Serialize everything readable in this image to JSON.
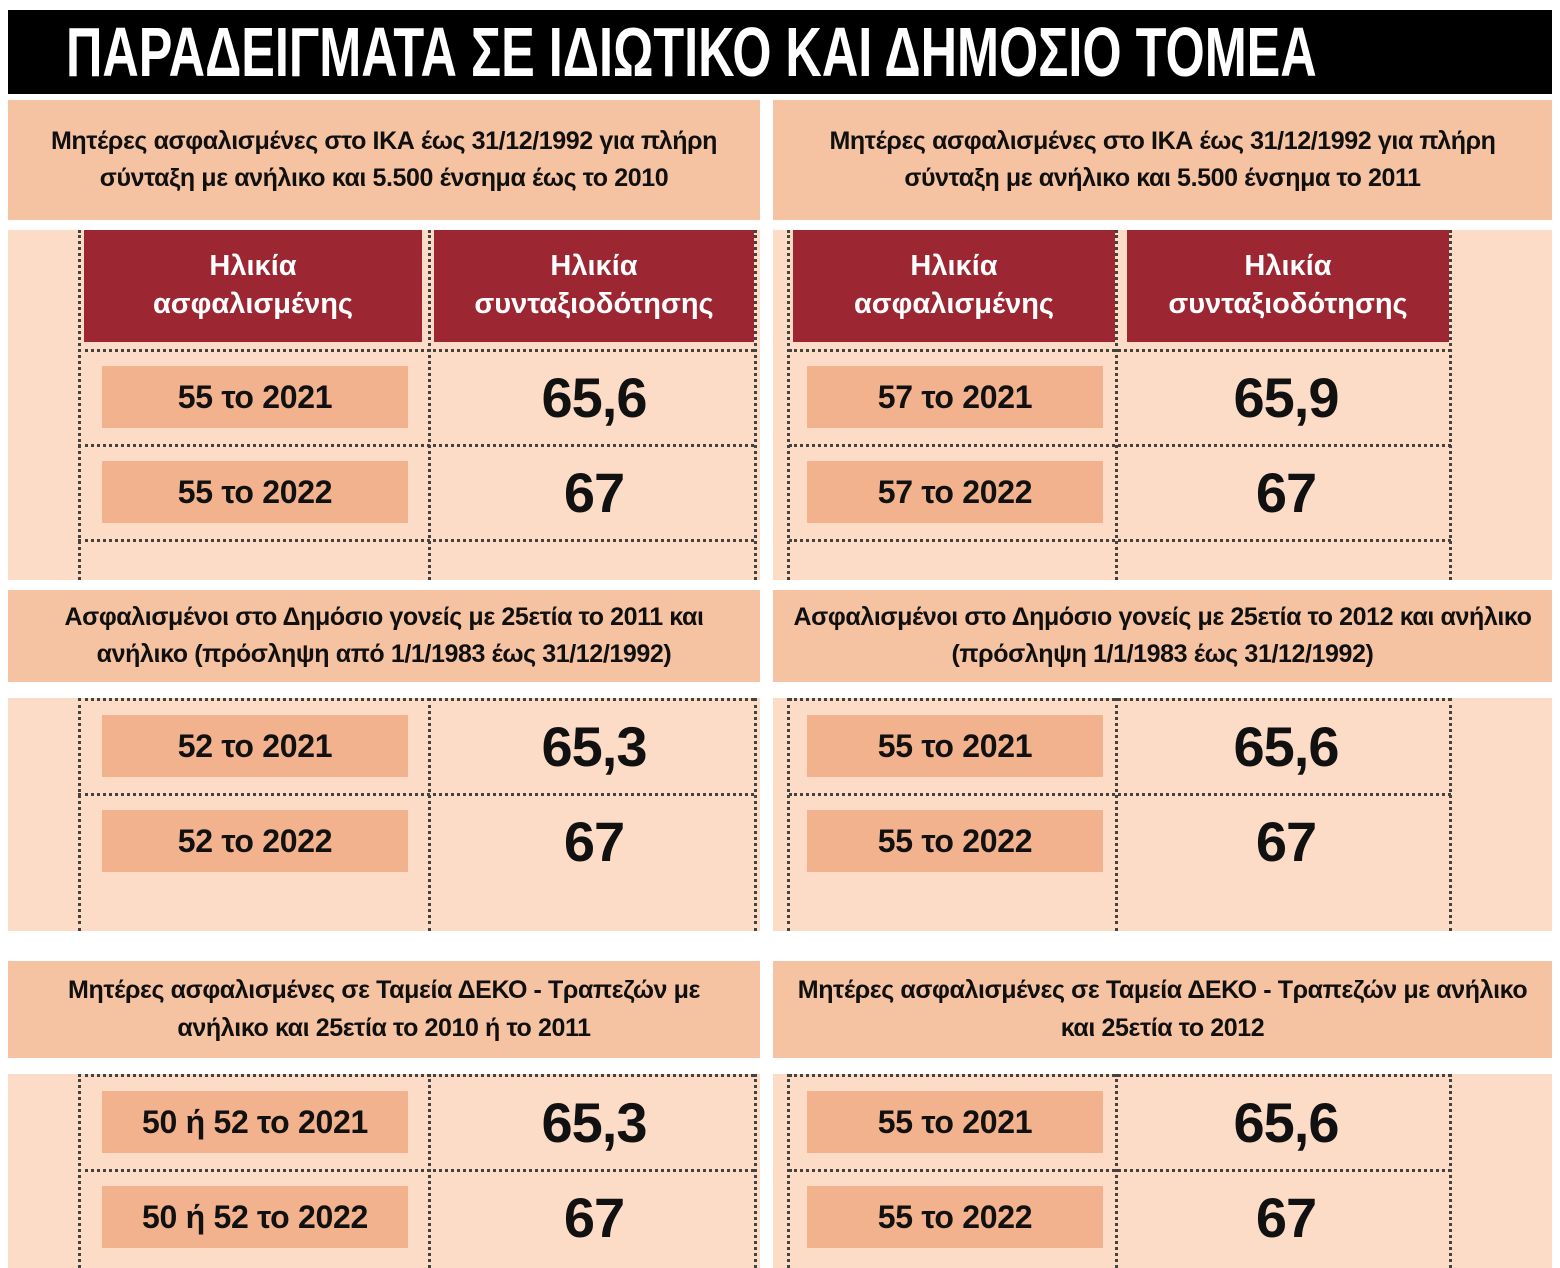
{
  "title": "ΠΑΡΑΔΕΙΓΜΑΤΑ ΣΕ ΙΔΙΩΤΙΚΟ ΚΑΙ ΔΗΜΟΣΙΟ ΤΟΜΕΑ",
  "colors": {
    "title_bar_bg": "#000000",
    "title_text": "#ffffff",
    "section_header_bg": "#f5c2a2",
    "table_bg": "#fcdcc6",
    "value_box_bg": "#f2b28d",
    "column_header_bg": "#9c2732",
    "column_header_text": "#ffffff",
    "body_text": "#111111",
    "dotted_line": "#45413c"
  },
  "chart_data": [
    {
      "type": "table",
      "title": "Μητέρες ασφαλισμένες στο ΙΚΑ έως 31/12/1992 για πλήρη σύνταξη με ανήλικο και 5.500 ένσημα έως το 2010",
      "columns": [
        "Ηλικία ασφαλισμένης",
        "Ηλικία συνταξιοδότησης"
      ],
      "column_headers_visible": true,
      "rows": [
        [
          "55 το 2021",
          "65,6"
        ],
        [
          "55 το 2022",
          "67"
        ]
      ]
    },
    {
      "type": "table",
      "title": "Μητέρες ασφαλισμένες στο ΙΚΑ έως 31/12/1992 για πλήρη σύνταξη με ανήλικο και 5.500 ένσημα το 2011",
      "columns": [
        "Ηλικία ασφαλισμένης",
        "Ηλικία συνταξιοδότησης"
      ],
      "column_headers_visible": true,
      "rows": [
        [
          "57 το 2021",
          "65,9"
        ],
        [
          "57 το 2022",
          "67"
        ]
      ]
    },
    {
      "type": "table",
      "title": "Ασφαλισμένοι στο Δημόσιο γονείς με 25ετία το 2011 και ανήλικο (πρόσληψη από 1/1/1983 έως 31/12/1992)",
      "columns": [
        "Ηλικία ασφαλισμένης",
        "Ηλικία συνταξιοδότησης"
      ],
      "column_headers_visible": false,
      "rows": [
        [
          "52 το 2021",
          "65,3"
        ],
        [
          "52 το 2022",
          "67"
        ]
      ]
    },
    {
      "type": "table",
      "title": "Ασφαλισμένοι στο Δημόσιο γονείς με 25ετία το 2012 και ανήλικο (πρόσληψη 1/1/1983 έως 31/12/1992)",
      "columns": [
        "Ηλικία ασφαλισμένης",
        "Ηλικία συνταξιοδότησης"
      ],
      "column_headers_visible": false,
      "rows": [
        [
          "55 το 2021",
          "65,6"
        ],
        [
          "55 το 2022",
          "67"
        ]
      ]
    },
    {
      "type": "table",
      "title": "Μητέρες ασφαλισμένες σε Ταμεία ΔΕΚΟ - Τραπεζών με ανήλικο και 25ετία το 2010 ή το 2011",
      "columns": [
        "Ηλικία ασφαλισμένης",
        "Ηλικία συνταξιοδότησης"
      ],
      "column_headers_visible": false,
      "rows": [
        [
          "50 ή 52 το 2021",
          "65,3"
        ],
        [
          "50 ή 52 το 2022",
          "67"
        ]
      ]
    },
    {
      "type": "table",
      "title": "Μητέρες ασφαλισμένες σε Ταμεία ΔΕΚΟ - Τραπεζών με ανήλικο και 25ετία το 2012",
      "columns": [
        "Ηλικία ασφαλισμένης",
        "Ηλικία συνταξιοδότησης"
      ],
      "column_headers_visible": false,
      "rows": [
        [
          "55 το 2021",
          "65,6"
        ],
        [
          "55 το 2022",
          "67"
        ]
      ]
    }
  ]
}
